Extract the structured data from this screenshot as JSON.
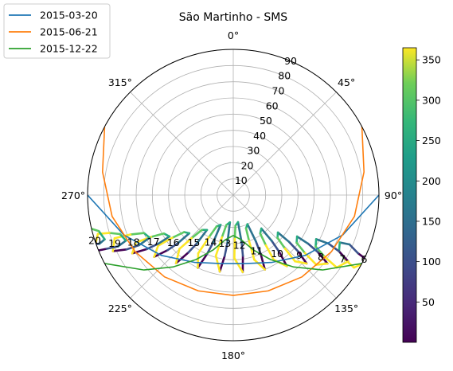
{
  "chart_data": {
    "type": "polar-line",
    "title": "São Martinho - SMS",
    "theta_ticks": [
      "0°",
      "45°",
      "90°",
      "135°",
      "180°",
      "225°",
      "270°",
      "315°"
    ],
    "radial_ticks": [
      "10",
      "20",
      "30",
      "40",
      "50",
      "60",
      "70",
      "80",
      "90"
    ],
    "radial_range": [
      0,
      90
    ],
    "theta_direction": "clockwise",
    "theta_zero": "top",
    "grid": true,
    "legend_position": "upper-left",
    "series": [
      {
        "name": "2015-03-20",
        "color": "#1f77b4",
        "azimuth": [
          90,
          110,
          130,
          150,
          170,
          190,
          210,
          230,
          250,
          270
        ],
        "value": [
          90,
          72,
          58,
          48,
          43,
          43,
          48,
          58,
          72,
          90
        ]
      },
      {
        "name": "2015-06-21",
        "color": "#ff7f0e",
        "azimuth": [
          62,
          80,
          100,
          120,
          140,
          160,
          180,
          200,
          220,
          240,
          260,
          280,
          298
        ],
        "value": [
          90,
          82,
          76,
          70,
          66,
          63,
          62,
          63,
          66,
          70,
          76,
          82,
          90
        ]
      },
      {
        "name": "2015-12-22",
        "color": "#2ca02c",
        "azimuth": [
          118,
          130,
          140,
          150,
          160,
          170,
          180,
          190,
          200,
          210,
          220,
          230,
          242
        ],
        "value": [
          90,
          72,
          58,
          46,
          36,
          28,
          25,
          28,
          36,
          46,
          58,
          72,
          90
        ]
      }
    ],
    "hour_labels": [
      {
        "label": "6",
        "az": 116,
        "r": 90
      },
      {
        "label": "7",
        "az": 120,
        "r": 78
      },
      {
        "label": "8",
        "az": 125,
        "r": 66
      },
      {
        "label": "9",
        "az": 132,
        "r": 55
      },
      {
        "label": "10",
        "az": 143,
        "r": 45
      },
      {
        "label": "11",
        "az": 157,
        "r": 37
      },
      {
        "label": "12",
        "az": 173,
        "r": 31
      },
      {
        "label": "13",
        "az": 190,
        "r": 30
      },
      {
        "label": "14",
        "az": 206,
        "r": 32
      },
      {
        "label": "15",
        "az": 220,
        "r": 38
      },
      {
        "label": "16",
        "az": 232,
        "r": 47
      },
      {
        "label": "17",
        "az": 240,
        "r": 57
      },
      {
        "label": "18",
        "az": 245,
        "r": 68
      },
      {
        "label": "19",
        "az": 248,
        "r": 79
      },
      {
        "label": "20",
        "az": 252,
        "r": 90
      }
    ],
    "analemma_hours": [
      {
        "hour": 6,
        "points": [
          [
            116,
            93
          ],
          [
            115,
            85
          ],
          [
            113,
            78
          ],
          [
            114,
            72
          ],
          [
            118,
            74
          ],
          [
            120,
            80
          ],
          [
            121,
            87
          ]
        ]
      },
      {
        "hour": 7,
        "points": [
          [
            120,
            82
          ],
          [
            118,
            74
          ],
          [
            117,
            66
          ],
          [
            118,
            58
          ],
          [
            122,
            60
          ],
          [
            124,
            68
          ],
          [
            125,
            78
          ]
        ]
      },
      {
        "hour": 8,
        "points": [
          [
            126,
            72
          ],
          [
            124,
            63
          ],
          [
            123,
            55
          ],
          [
            123,
            47
          ],
          [
            127,
            49
          ],
          [
            129,
            57
          ],
          [
            130,
            67
          ]
        ]
      },
      {
        "hour": 9,
        "points": [
          [
            133,
            62
          ],
          [
            131,
            53
          ],
          [
            130,
            45
          ],
          [
            130,
            36
          ],
          [
            134,
            38
          ],
          [
            136,
            46
          ],
          [
            137,
            56
          ]
        ]
      },
      {
        "hour": 10,
        "points": [
          [
            143,
            55
          ],
          [
            141,
            45
          ],
          [
            140,
            37
          ],
          [
            140,
            27
          ],
          [
            145,
            29
          ],
          [
            147,
            37
          ],
          [
            148,
            47
          ]
        ]
      },
      {
        "hour": 11,
        "points": [
          [
            157,
            50
          ],
          [
            155,
            40
          ],
          [
            154,
            32
          ],
          [
            154,
            20
          ],
          [
            159,
            22
          ],
          [
            161,
            30
          ],
          [
            162,
            42
          ]
        ]
      },
      {
        "hour": 12,
        "points": [
          [
            173,
            48
          ],
          [
            171,
            38
          ],
          [
            170,
            30
          ],
          [
            170,
            17
          ],
          [
            176,
            19
          ],
          [
            178,
            27
          ],
          [
            179,
            39
          ]
        ]
      },
      {
        "hour": 13,
        "points": [
          [
            190,
            48
          ],
          [
            188,
            38
          ],
          [
            187,
            30
          ],
          [
            187,
            17
          ],
          [
            193,
            19
          ],
          [
            195,
            27
          ],
          [
            196,
            39
          ]
        ]
      },
      {
        "hour": 14,
        "points": [
          [
            206,
            50
          ],
          [
            204,
            40
          ],
          [
            203,
            32
          ],
          [
            203,
            20
          ],
          [
            208,
            22
          ],
          [
            210,
            30
          ],
          [
            211,
            42
          ]
        ]
      },
      {
        "hour": 15,
        "points": [
          [
            220,
            55
          ],
          [
            218,
            45
          ],
          [
            217,
            37
          ],
          [
            217,
            27
          ],
          [
            222,
            29
          ],
          [
            224,
            37
          ],
          [
            225,
            47
          ]
        ]
      },
      {
        "hour": 16,
        "points": [
          [
            232,
            62
          ],
          [
            230,
            53
          ],
          [
            229,
            45
          ],
          [
            229,
            36
          ],
          [
            233,
            38
          ],
          [
            235,
            46
          ],
          [
            236,
            56
          ]
        ]
      },
      {
        "hour": 17,
        "points": [
          [
            240,
            72
          ],
          [
            238,
            63
          ],
          [
            237,
            55
          ],
          [
            237,
            47
          ],
          [
            241,
            49
          ],
          [
            243,
            57
          ],
          [
            244,
            67
          ]
        ]
      },
      {
        "hour": 18,
        "points": [
          [
            245,
            82
          ],
          [
            243,
            74
          ],
          [
            242,
            66
          ],
          [
            243,
            58
          ],
          [
            247,
            60
          ],
          [
            249,
            68
          ],
          [
            250,
            78
          ]
        ]
      },
      {
        "hour": 19,
        "points": [
          [
            248,
            93
          ],
          [
            247,
            85
          ],
          [
            246,
            78
          ],
          [
            247,
            72
          ],
          [
            251,
            74
          ],
          [
            253,
            80
          ],
          [
            254,
            87
          ]
        ]
      },
      {
        "hour": 20,
        "points": [
          [
            252,
            100
          ],
          [
            251,
            94
          ],
          [
            250,
            88
          ],
          [
            251,
            84
          ],
          [
            255,
            86
          ],
          [
            257,
            91
          ],
          [
            258,
            96
          ]
        ]
      }
    ],
    "colorbar": {
      "colormap": "viridis",
      "range": [
        0,
        365
      ],
      "ticks": [
        "50",
        "100",
        "150",
        "200",
        "250",
        "300",
        "350"
      ]
    }
  }
}
